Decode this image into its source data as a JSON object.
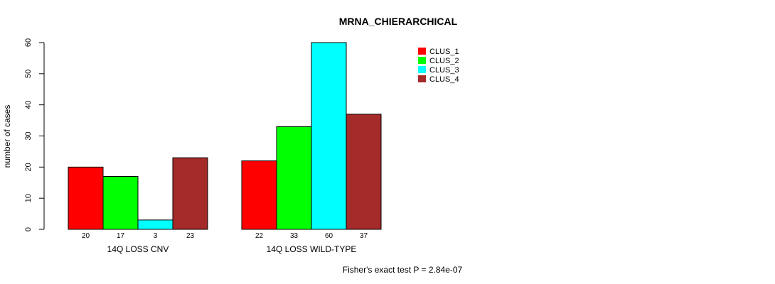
{
  "chart_data": {
    "type": "bar",
    "title": "MRNA_CHIERARCHICAL",
    "ylabel": "number of cases",
    "ylim": [
      0,
      60
    ],
    "yticks": [
      0,
      10,
      20,
      30,
      40,
      50,
      60
    ],
    "groups": [
      {
        "label": "14Q LOSS CNV",
        "values": [
          20,
          17,
          3,
          23
        ]
      },
      {
        "label": "14Q LOSS WILD-TYPE",
        "values": [
          22,
          33,
          60,
          37
        ]
      }
    ],
    "series": [
      {
        "name": "CLUS_1",
        "color": "#ff0000"
      },
      {
        "name": "CLUS_2",
        "color": "#00ff00"
      },
      {
        "name": "CLUS_3",
        "color": "#00ffff"
      },
      {
        "name": "CLUS_4",
        "color": "#a52a2a"
      }
    ],
    "legend_position": "top-right",
    "grid": false,
    "footnote": "Fisher's exact test P = 2.84e-07"
  }
}
